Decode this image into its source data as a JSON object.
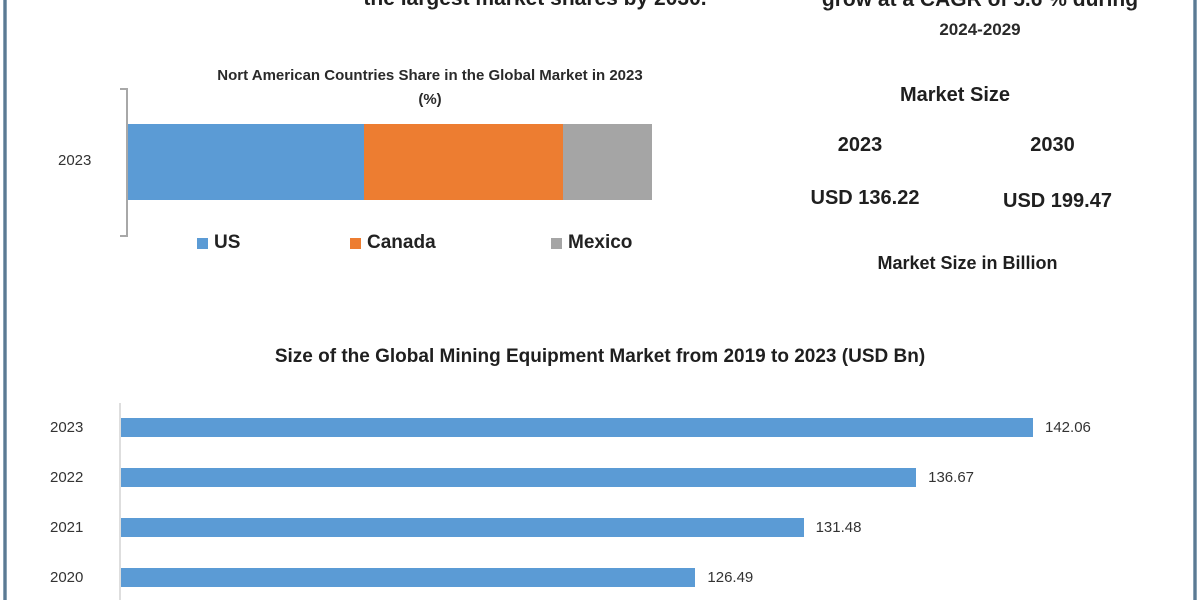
{
  "header": {
    "left_cut_text": "the largest market shares by 2030.",
    "right_cut_text": "grow at a CAGR of 5.6 % during",
    "cagr_period": "2024-2029"
  },
  "market_size": {
    "title": "Market Size",
    "year_a": "2023",
    "year_b": "2030",
    "value_a": "USD 136.22",
    "value_b": "USD 199.47",
    "unit_label": "Market Size in Billion"
  },
  "colors": {
    "us": "#5b9bd5",
    "canada": "#ed7d31",
    "mexico": "#a5a5a5",
    "bar": "#5b9bd5",
    "frame": "#5b7a93"
  },
  "chart_data": [
    {
      "type": "bar",
      "orientation": "horizontal-stacked",
      "title": "Nort American Countries Share in the Global Market in 2023 (%)",
      "title_line1": "Nort American Countries Share in the Global Market in 2023",
      "title_line2": "(%)",
      "categories": [
        "2023"
      ],
      "series": [
        {
          "name": "US",
          "values": [
            45
          ]
        },
        {
          "name": "Canada",
          "values": [
            38
          ]
        },
        {
          "name": "Mexico",
          "values": [
            17
          ]
        }
      ],
      "xlabel": "",
      "ylabel": "",
      "legend_position": "bottom",
      "grid": false
    },
    {
      "type": "bar",
      "orientation": "horizontal",
      "title": "Size of the Global Mining Equipment Market from 2019 to 2023 (USD Bn)",
      "categories": [
        "2023",
        "2022",
        "2021",
        "2020"
      ],
      "values": [
        142.06,
        136.67,
        131.48,
        126.49
      ],
      "value_labels": [
        "142.06",
        "136.67",
        "131.48",
        "126.49"
      ],
      "xlabel": "",
      "ylabel": "",
      "grid": false
    }
  ]
}
